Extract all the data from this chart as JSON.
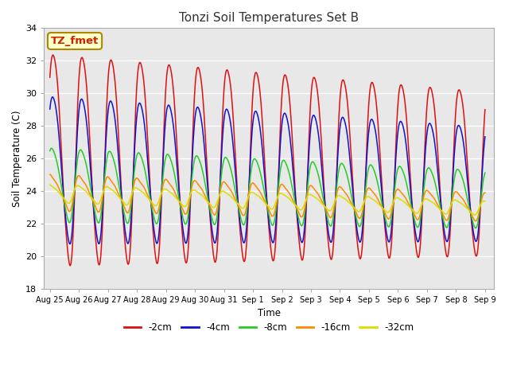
{
  "title": "Tonzi Soil Temperatures Set B",
  "xlabel": "Time",
  "ylabel": "Soil Temperature (C)",
  "ylim": [
    18,
    34
  ],
  "xlim": [
    -0.2,
    15.3
  ],
  "x_tick_labels": [
    "Aug 25",
    "Aug 26",
    "Aug 27",
    "Aug 28",
    "Aug 29",
    "Aug 30",
    "Aug 31",
    "Sep 1",
    "Sep 2",
    "Sep 3",
    "Sep 4",
    "Sep 5",
    "Sep 6",
    "Sep 7",
    "Sep 8",
    "Sep 9"
  ],
  "x_tick_positions": [
    0,
    1,
    2,
    3,
    4,
    5,
    6,
    7,
    8,
    9,
    10,
    11,
    12,
    13,
    14,
    15
  ],
  "series_colors": [
    "#dd1111",
    "#1111cc",
    "#22cc22",
    "#ff8800",
    "#dddd00"
  ],
  "series_labels": [
    "-2cm",
    "-4cm",
    "-8cm",
    "-16cm",
    "-32cm"
  ],
  "background_color": "#e8e8e8",
  "annotation_text": "TZ_fmet",
  "annotation_bg": "#ffffcc",
  "annotation_border": "#aa8800",
  "annotation_text_color": "#cc2200",
  "grid_color": "#ffffff",
  "yticks": [
    18,
    20,
    22,
    24,
    26,
    28,
    30,
    32,
    34
  ],
  "mean_2cm": 26.2,
  "mean_4cm": 25.5,
  "mean_8cm": 24.5,
  "mean_16cm": 24.0,
  "mean_32cm": 23.9,
  "amp_2cm": [
    6.5,
    0.8,
    0.3
  ],
  "amp_4cm": [
    4.5,
    0.6,
    0.2
  ],
  "amp_8cm": [
    2.2,
    0.4,
    0.1
  ],
  "amp_16cm": [
    1.0,
    0.3,
    0.1
  ],
  "amp_32cm": [
    0.5,
    0.15,
    0.05
  ],
  "phase_2cm": 0.62,
  "phase_4cm": 0.68,
  "phase_8cm": 0.8,
  "phase_16cm": 0.95,
  "phase_32cm": 1.15,
  "trend": -0.06
}
